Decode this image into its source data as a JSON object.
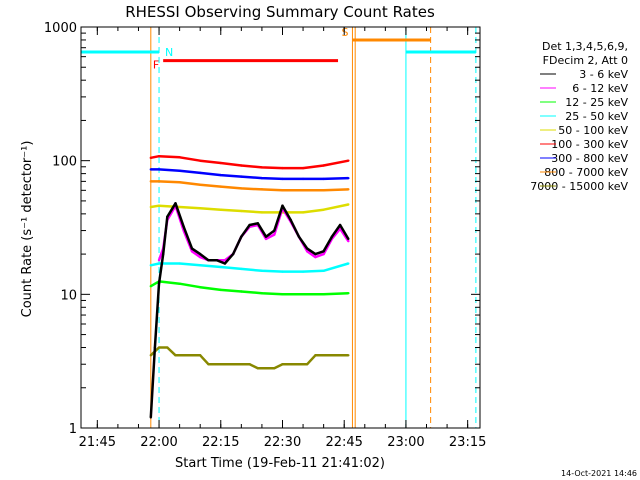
{
  "chart_data": {
    "type": "line",
    "title": "RHESSI Observing Summary Count Rates",
    "xlabel": "Start Time (19-Feb-11 21:41:02)",
    "ylabel": "Count Rate (s⁻¹ detector⁻¹)",
    "x_scale": "time",
    "y_scale": "log",
    "xlim": [
      "21:41:02",
      "23:18:00"
    ],
    "ylim": [
      1,
      1000
    ],
    "x_ticks": [
      "21:45",
      "22:00",
      "22:15",
      "22:30",
      "22:45",
      "23:00",
      "23:15"
    ],
    "y_ticks": [
      "1",
      "10",
      "100",
      "1000"
    ],
    "legend_header": [
      "Det 1,3,4,5,6,9,",
      "FDecim 2, Att 0"
    ],
    "legend_placement": "right",
    "timestamp": "14-Oct-2021 14:46",
    "series": [
      {
        "name": "3 - 6 keV",
        "color": "#000000",
        "x": [
          "21:58",
          "21:59",
          "22:00",
          "22:01",
          "22:02",
          "22:04",
          "22:06",
          "22:08",
          "22:10",
          "22:12",
          "22:14",
          "22:16",
          "22:18",
          "22:20",
          "22:22",
          "22:24",
          "22:26",
          "22:28",
          "22:30",
          "22:32",
          "22:34",
          "22:36",
          "22:38",
          "22:40",
          "22:42",
          "22:44",
          "22:46"
        ],
        "y": [
          1.2,
          4,
          12,
          20,
          38,
          48,
          32,
          22,
          20,
          18,
          18,
          17,
          20,
          27,
          33,
          34,
          27,
          30,
          46,
          36,
          27,
          22,
          20,
          21,
          27,
          33,
          26
        ]
      },
      {
        "name": "6 - 12 keV",
        "color": "#ff00ff",
        "x": [
          "22:00",
          "22:01",
          "22:02",
          "22:04",
          "22:06",
          "22:08",
          "22:10",
          "22:12",
          "22:14",
          "22:16",
          "22:18",
          "22:20",
          "22:22",
          "22:24",
          "22:26",
          "22:28",
          "22:30",
          "22:32",
          "22:34",
          "22:36",
          "22:38",
          "22:40",
          "22:42",
          "22:44",
          "22:46"
        ],
        "y": [
          18,
          22,
          36,
          46,
          30,
          21,
          19,
          18,
          18,
          18,
          20,
          27,
          32,
          33,
          26,
          28,
          44,
          35,
          27,
          21,
          19,
          20,
          26,
          31,
          25
        ]
      },
      {
        "name": "12 - 25 keV",
        "color": "#00ff00",
        "x": [
          "21:58",
          "22:00",
          "22:05",
          "22:10",
          "22:15",
          "22:20",
          "22:25",
          "22:30",
          "22:35",
          "22:40",
          "22:46"
        ],
        "y": [
          11.5,
          12.5,
          12,
          11.3,
          10.8,
          10.5,
          10.2,
          10,
          10,
          10,
          10.2
        ]
      },
      {
        "name": "25 - 50 keV",
        "color": "#00ffff",
        "x": [
          "21:58",
          "22:00",
          "22:05",
          "22:10",
          "22:15",
          "22:20",
          "22:25",
          "22:30",
          "22:35",
          "22:40",
          "22:46"
        ],
        "y": [
          16.5,
          17,
          17,
          16.5,
          16,
          15.5,
          15,
          14.8,
          14.8,
          15,
          17
        ]
      },
      {
        "name": "50 - 100 keV",
        "color": "#dddd00",
        "x": [
          "21:58",
          "22:00",
          "22:05",
          "22:10",
          "22:15",
          "22:20",
          "22:25",
          "22:30",
          "22:35",
          "22:40",
          "22:46"
        ],
        "y": [
          45,
          46,
          45,
          44,
          43,
          42,
          41,
          41,
          41,
          43,
          47
        ]
      },
      {
        "name": "100 - 300 keV",
        "color": "#ff0000",
        "x": [
          "21:58",
          "22:00",
          "22:05",
          "22:10",
          "22:15",
          "22:20",
          "22:25",
          "22:30",
          "22:35",
          "22:40",
          "22:46"
        ],
        "y": [
          105,
          108,
          106,
          100,
          96,
          92,
          89,
          88,
          88,
          92,
          100
        ]
      },
      {
        "name": "300 - 800 keV",
        "color": "#0000ff",
        "x": [
          "21:58",
          "22:00",
          "22:05",
          "22:10",
          "22:15",
          "22:20",
          "22:25",
          "22:30",
          "22:35",
          "22:40",
          "22:46"
        ],
        "y": [
          86,
          86,
          84,
          81,
          78,
          76,
          74,
          73,
          73,
          73,
          74
        ]
      },
      {
        "name": "800 - 7000 keV",
        "color": "#ff8800",
        "x": [
          "21:58",
          "22:00",
          "22:05",
          "22:10",
          "22:15",
          "22:20",
          "22:25",
          "22:30",
          "22:35",
          "22:40",
          "22:46"
        ],
        "y": [
          70,
          70,
          69,
          66,
          64,
          62,
          61,
          60,
          60,
          60,
          61
        ]
      },
      {
        "name": "7000 - 15000 keV",
        "color": "#888800",
        "x": [
          "21:58",
          "22:00",
          "22:02",
          "22:04",
          "22:06",
          "22:08",
          "22:10",
          "22:12",
          "22:14",
          "22:16",
          "22:18",
          "22:20",
          "22:22",
          "22:24",
          "22:26",
          "22:28",
          "22:30",
          "22:32",
          "22:34",
          "22:36",
          "22:38",
          "22:40",
          "22:42",
          "22:44",
          "22:46"
        ],
        "y": [
          3.5,
          4,
          4,
          3.5,
          3.5,
          3.5,
          3.5,
          3,
          3,
          3,
          3,
          3,
          3,
          2.8,
          2.8,
          2.8,
          3,
          3,
          3,
          3,
          3.5,
          3.5,
          3.5,
          3.5,
          3.5
        ]
      }
    ],
    "flag_bars": [
      {
        "label": "N",
        "color": "#00ffff",
        "segments": [
          [
            "21:41:02",
            "22:00:00"
          ],
          [
            "23:00:00",
            "23:17:00"
          ]
        ],
        "level": 650
      },
      {
        "label": "F",
        "color": "#ff0000",
        "segments": [
          [
            "22:01:00",
            "22:43:30"
          ]
        ],
        "level": 560
      },
      {
        "label": "S",
        "color": "#ff8800",
        "segments": [
          [
            "22:47:00",
            "23:06:00"
          ]
        ],
        "level": 800
      }
    ],
    "vertical_lines": [
      {
        "x": "21:41:02",
        "color": "#00ffff",
        "style": "solid"
      },
      {
        "x": "21:58:00",
        "color": "#ff8800",
        "style": "solid"
      },
      {
        "x": "22:00:00",
        "color": "#00ffff",
        "style": "dashed"
      },
      {
        "x": "22:47:00",
        "color": "#ff8800",
        "style": "solid"
      },
      {
        "x": "22:47:40",
        "color": "#ff8800",
        "style": "solid"
      },
      {
        "x": "23:00:00",
        "color": "#00ffff",
        "style": "solid"
      },
      {
        "x": "23:06:00",
        "color": "#ff8800",
        "style": "dashed"
      },
      {
        "x": "23:17:00",
        "color": "#00ffff",
        "style": "dashed"
      }
    ]
  }
}
